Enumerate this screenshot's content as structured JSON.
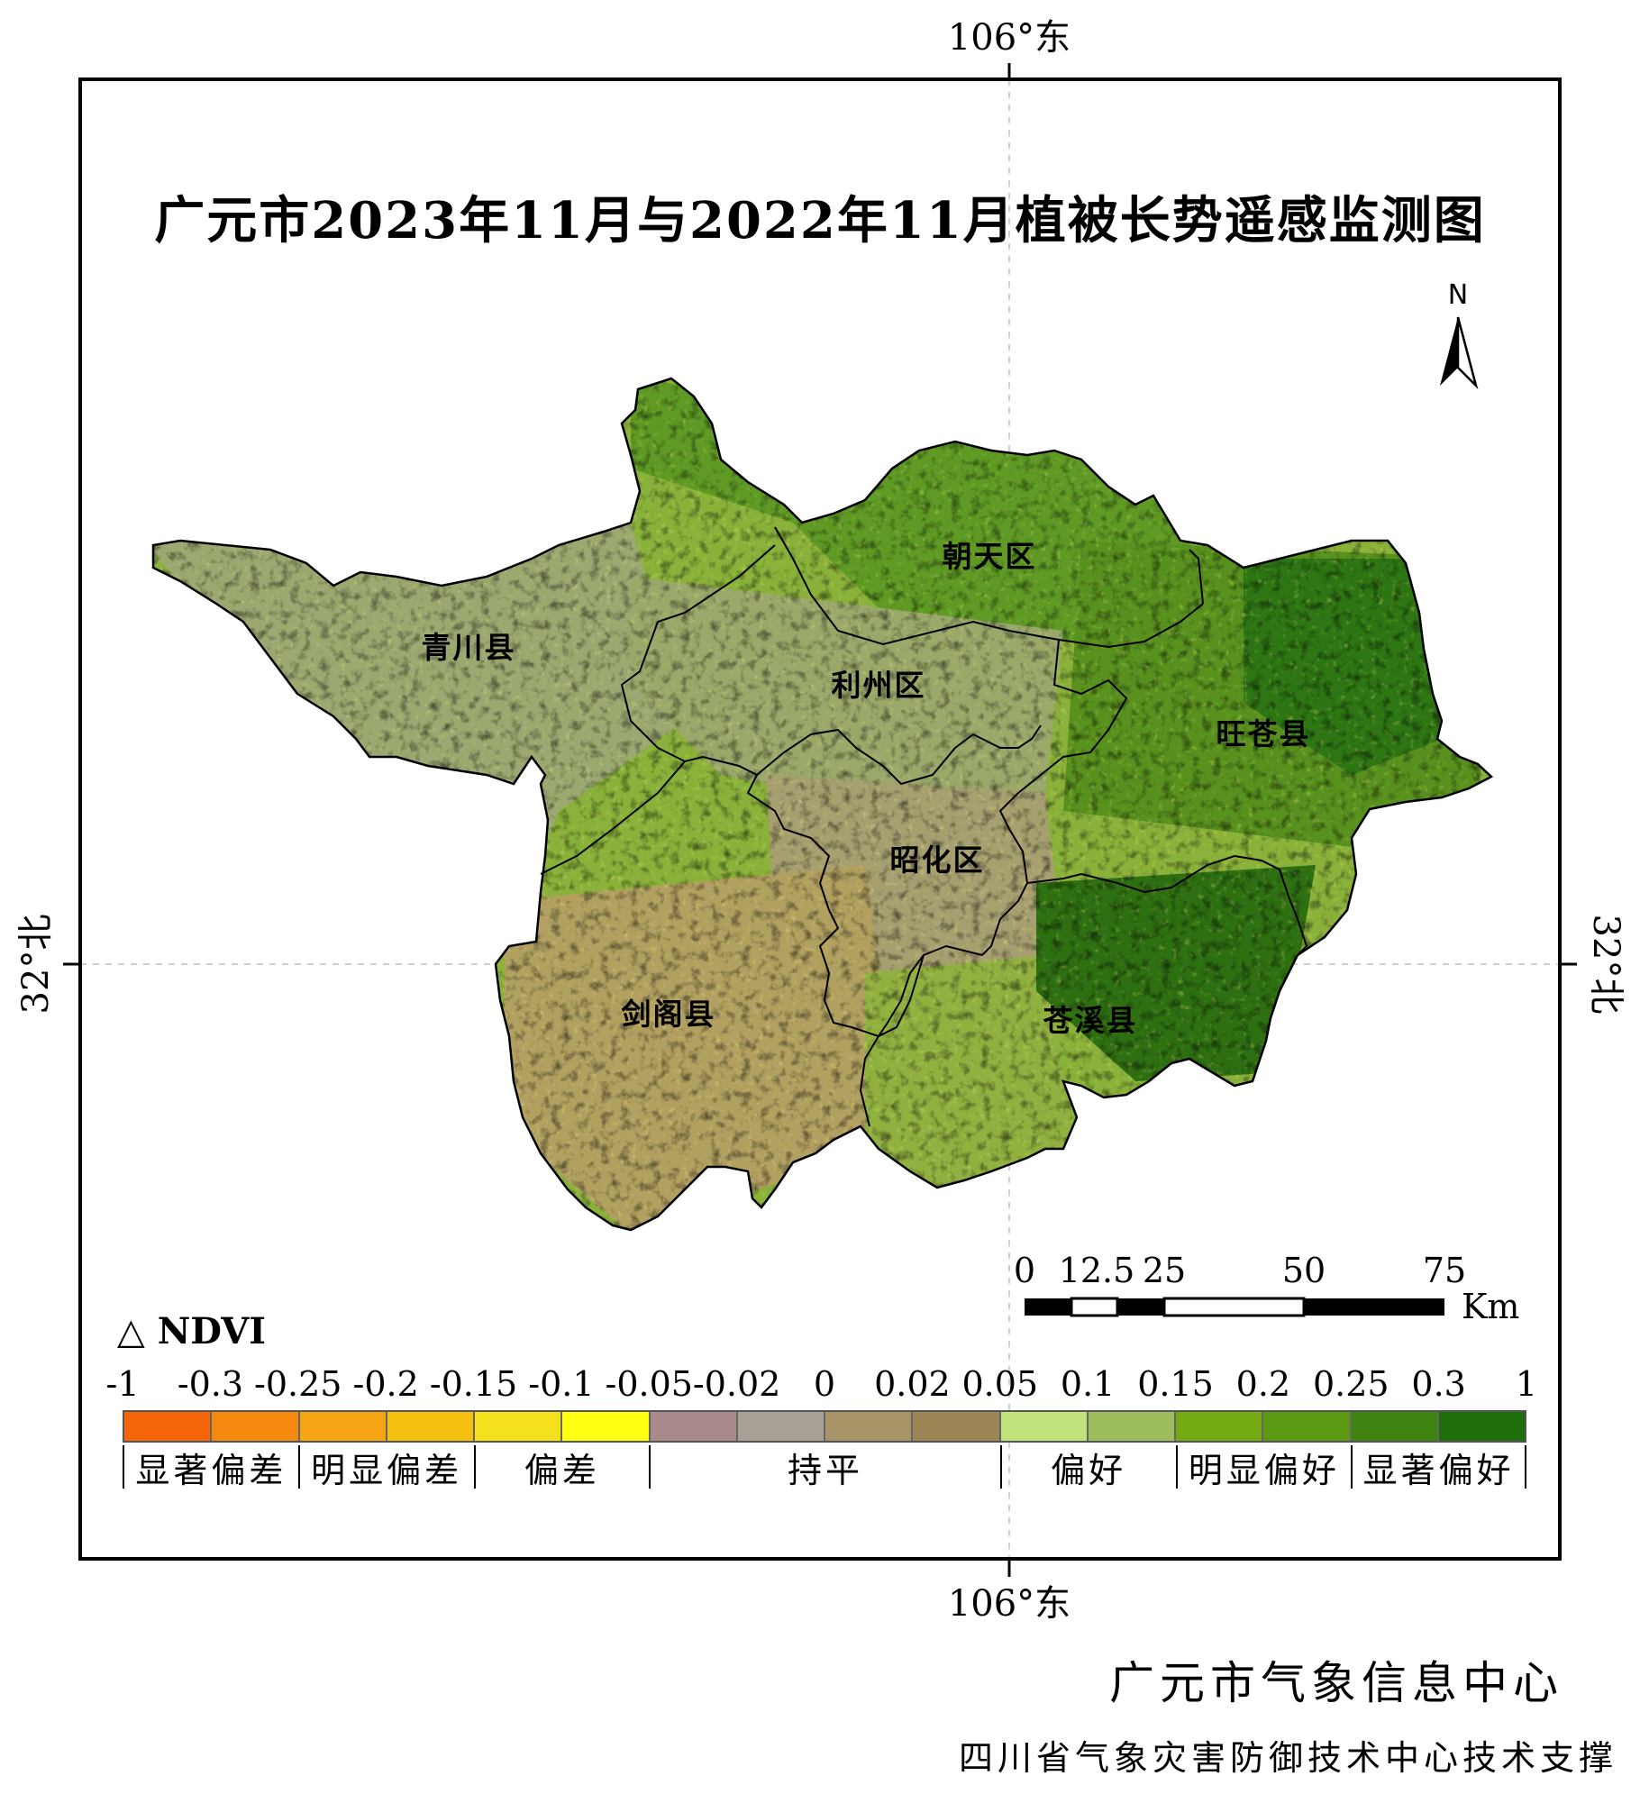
{
  "title": "广元市2023年11月与2022年11月植被长势遥感监测图",
  "graticule": {
    "lon_top": "106°东",
    "lon_bottom": "106°东",
    "lat_left": "32°北",
    "lat_right": "32°北"
  },
  "north_arrow": {
    "label": "N",
    "icon": "north-arrow-icon"
  },
  "counties": {
    "qingchuan": "青川县",
    "chaotian": "朝天区",
    "lizhou": "利州区",
    "wangcang": "旺苍县",
    "zhaohua": "昭化区",
    "jiange": "剑阁县",
    "cangxi": "苍溪县"
  },
  "scale_bar": {
    "ticks": [
      "0",
      "12.5",
      "25",
      "50",
      "75"
    ],
    "tick_values": [
      0,
      12.5,
      25,
      50,
      75
    ],
    "unit": "Km"
  },
  "legend": {
    "title": "△ NDVI",
    "ticks": [
      "-1",
      "-0.3",
      "-0.25",
      "-0.2",
      "-0.15",
      "-0.1",
      "-0.05",
      "-0.02",
      "0",
      "0.02",
      "0.05",
      "0.1",
      "0.15",
      "0.2",
      "0.25",
      "0.3",
      "1"
    ],
    "colors": [
      "#f5650a",
      "#f5880f",
      "#f5a514",
      "#f5c00f",
      "#f5e01e",
      "#ffff14",
      "#a98a8a",
      "#a89f95",
      "#a89466",
      "#9c8656",
      "#c1e27a",
      "#9ebe5e",
      "#74aa12",
      "#5c9912",
      "#3f8410",
      "#1f6e0c"
    ],
    "classes": [
      {
        "label": "显著偏差",
        "span": 2
      },
      {
        "label": "明显偏差",
        "span": 2
      },
      {
        "label": "偏差",
        "span": 2
      },
      {
        "label": "持平",
        "span": 4
      },
      {
        "label": "偏好",
        "span": 2
      },
      {
        "label": "明显偏好",
        "span": 2
      },
      {
        "label": "显著偏好",
        "span": 2
      }
    ]
  },
  "credits": {
    "producer": "广元市气象信息中心",
    "support": "四川省气象灾害防御技术中心技术支撑"
  }
}
